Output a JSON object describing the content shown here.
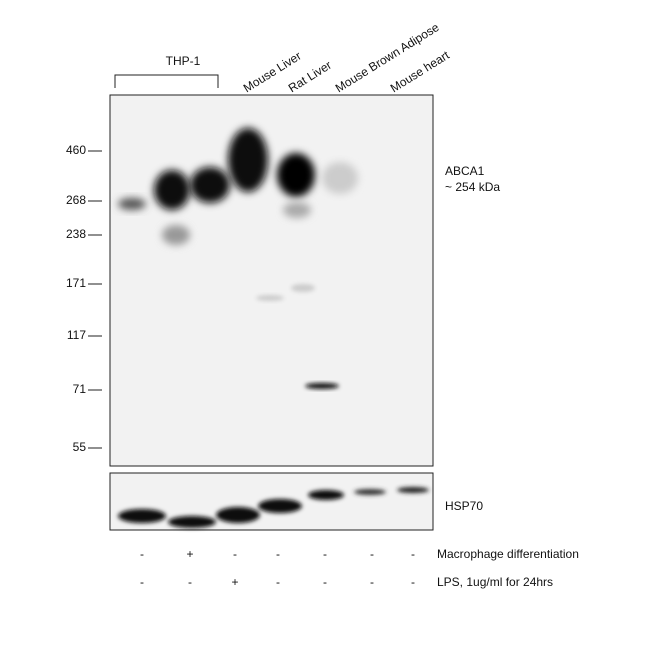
{
  "header": {
    "group_label": "THP-1",
    "lanes": [
      "Mouse Liver",
      "Rat Liver",
      "Mouse Brown Adipose",
      "Mouse heart"
    ]
  },
  "markers": [
    "460",
    "268",
    "238",
    "171",
    "117",
    "71",
    "55"
  ],
  "band_labels": {
    "target": "ABCA1",
    "size": "~ 254 kDa",
    "control": "HSP70"
  },
  "treatments": [
    {
      "label": "Macrophage differentiation",
      "signs": [
        "-",
        "+",
        "-",
        "-",
        "-",
        "-",
        "-"
      ]
    },
    {
      "label": "LPS, 1ug/ml for 24hrs",
      "signs": [
        "-",
        "-",
        "+",
        "-",
        "-",
        "-",
        "-"
      ]
    }
  ]
}
